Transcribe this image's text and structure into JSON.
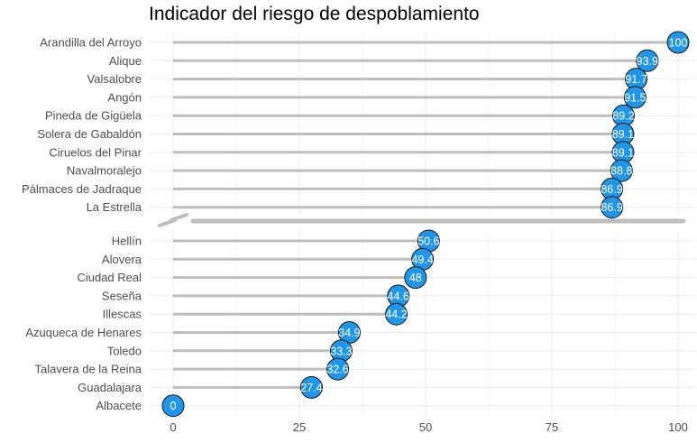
{
  "chart_data": {
    "type": "lollipop",
    "title": "Indicador del riesgo de despoblamiento",
    "xlabel": "",
    "ylabel": "",
    "xlim": [
      0,
      100
    ],
    "x_ticks": [
      "0",
      "25",
      "50",
      "75",
      "100"
    ],
    "x_tick_values": [
      0,
      25,
      50,
      75,
      100
    ],
    "grid": true,
    "axis_break": true,
    "colors": {
      "point_fill": "#2196e8",
      "point_stroke": "#1a1a1a",
      "stem": "#bebebe",
      "grid": "#ebebeb",
      "value_text": "#ffffff"
    },
    "groups": [
      {
        "categories": [
          "Arandilla del Arroyo",
          "Alique",
          "Valsalobre",
          "Angón",
          "Pineda de Gigüela",
          "Solera de Gabaldón",
          "Ciruelos del Pinar",
          "Navalmoralejo",
          "Pálmaces de Jadraque",
          "La Estrella"
        ],
        "values": [
          100,
          93.9,
          91.7,
          91.5,
          89.2,
          89.1,
          89.1,
          88.8,
          86.9,
          86.9
        ],
        "value_labels": [
          "100",
          "93.9",
          "91.7",
          "91.5",
          "89.2",
          "89.1",
          "89.1",
          "88.8",
          "86.9",
          "86.9"
        ]
      },
      {
        "categories": [
          "Hellín",
          "Alovera",
          "Ciudad Real",
          "Seseña",
          "Illescas",
          "Azuqueca de Henares",
          "Toledo",
          "Talavera de la Reina",
          "Guadalajara",
          "Albacete"
        ],
        "values": [
          50.6,
          49.4,
          48,
          44.6,
          44.2,
          34.9,
          33.3,
          32.6,
          27.4,
          0
        ],
        "value_labels": [
          "50.6",
          "49.4",
          "48",
          "44.6",
          "44.2",
          "34.9",
          "33.3",
          "32.6",
          "27.4",
          "0"
        ]
      }
    ]
  }
}
